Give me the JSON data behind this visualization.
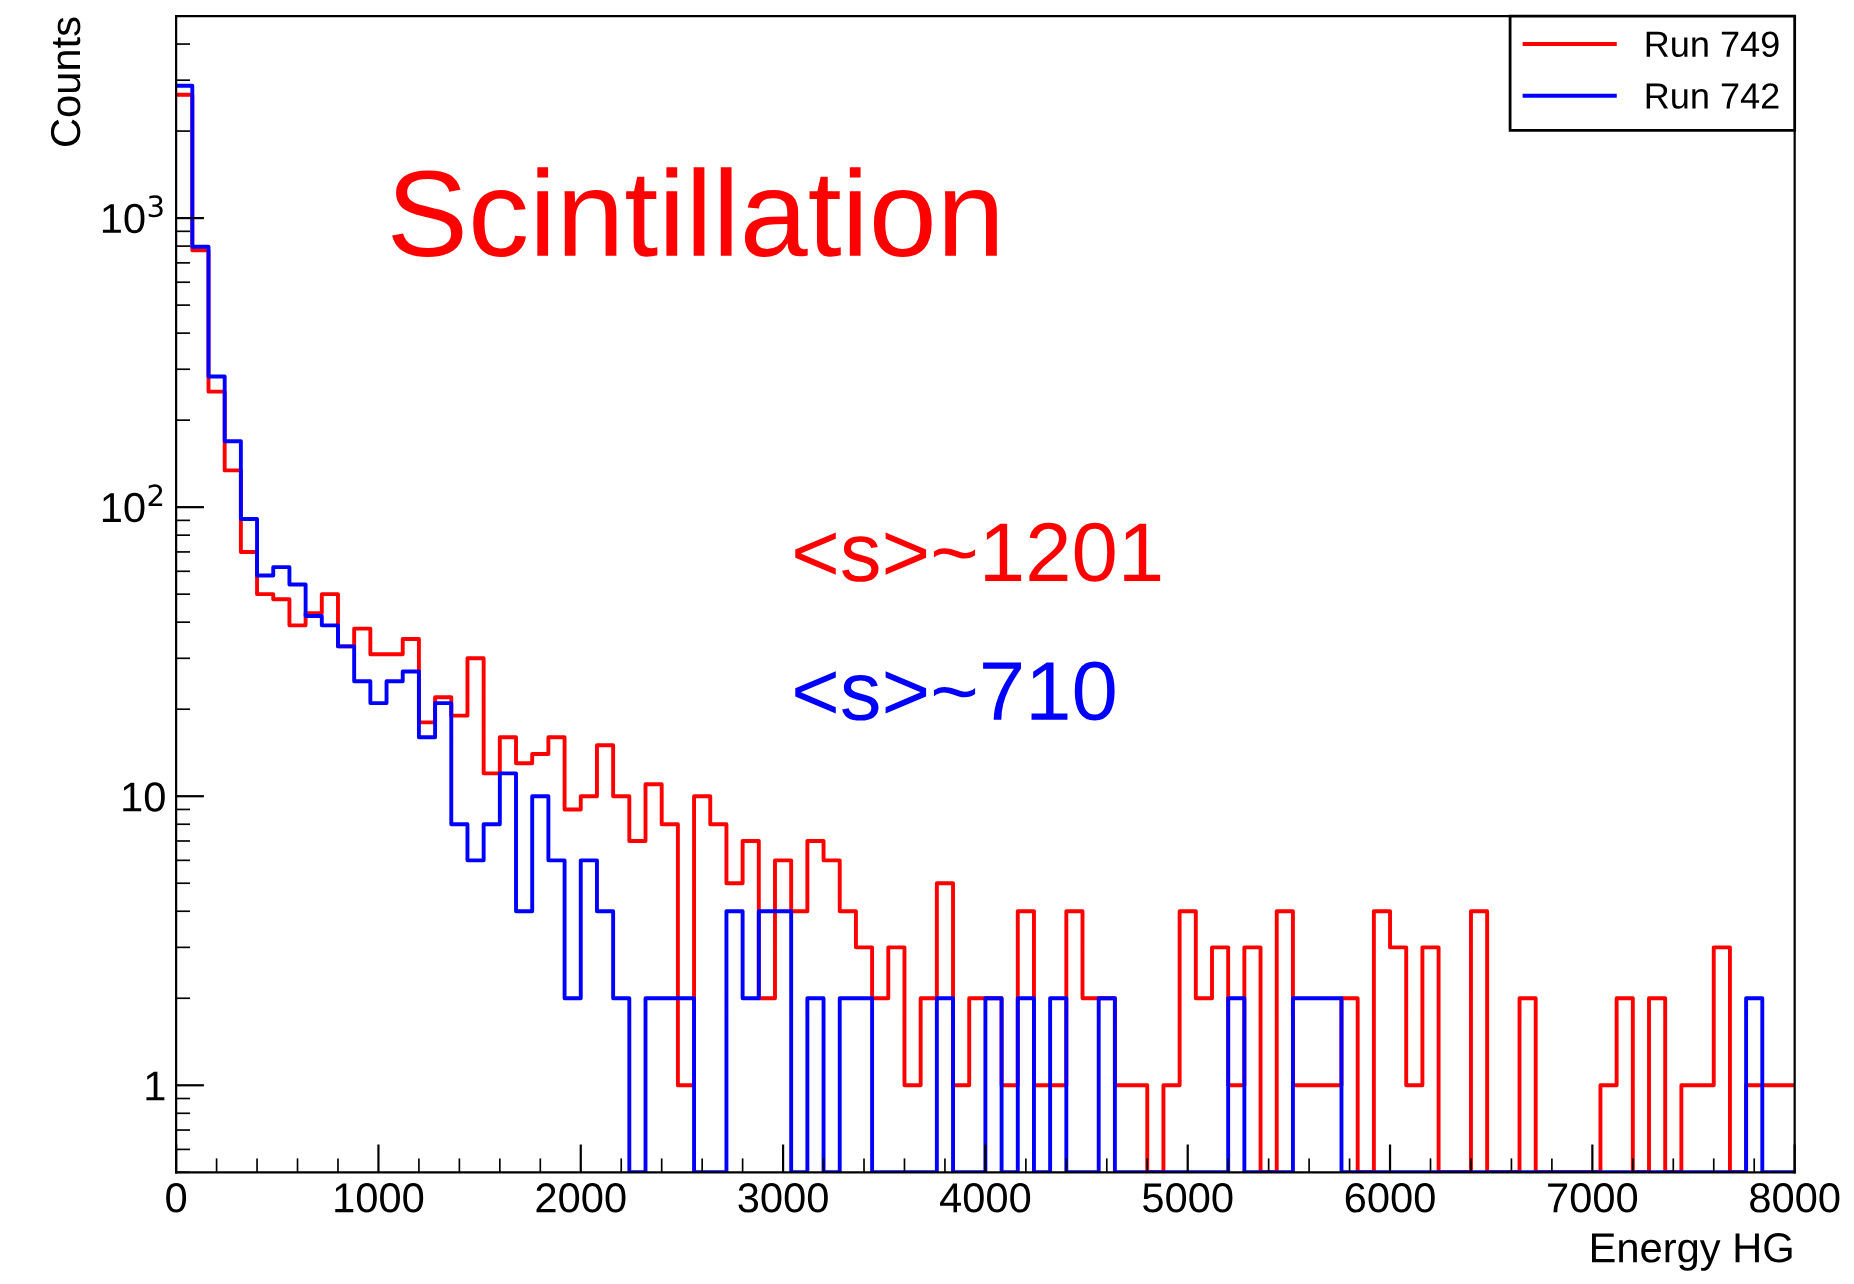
{
  "chart_data": {
    "type": "histogram",
    "xlabel": "Energy HG",
    "ylabel": "Counts",
    "bins": [
      0,
      80,
      160,
      240,
      320,
      400,
      480,
      560,
      640,
      720,
      800,
      880,
      960,
      1040,
      1120,
      1200,
      1280,
      1360,
      1440,
      1520,
      1600,
      1680,
      1760,
      1840,
      1920,
      2000,
      2080,
      2160,
      2240,
      2320,
      2400,
      2480,
      2560,
      2640,
      2720,
      2800,
      2880,
      2960,
      3040,
      3120,
      3200,
      3280,
      3360,
      3440,
      3520,
      3600,
      3680,
      3760,
      3840,
      3920,
      4000,
      4080,
      4160,
      4240,
      4320,
      4400,
      4480,
      4560,
      4640,
      4720,
      4800,
      4880,
      4960,
      5040,
      5120,
      5200,
      5280,
      5360,
      5440,
      5520,
      5600,
      5680,
      5760,
      5840,
      5920,
      6000,
      6080,
      6160,
      6240,
      6320,
      6400,
      6480,
      6560,
      6640,
      6720,
      6800,
      6880,
      6960,
      7040,
      7120,
      7200,
      7280,
      7360,
      7440,
      7520,
      7600,
      7680,
      7760,
      7840,
      7920,
      8000
    ],
    "series": [
      {
        "name": "Run 749",
        "color": "#ff0000",
        "values": [
          2670,
          774,
          251,
          134,
          70,
          50,
          48,
          39,
          43,
          50,
          33,
          38,
          31,
          31,
          35,
          18,
          22,
          19,
          30,
          12,
          16,
          13,
          14,
          16,
          9,
          10,
          15,
          10,
          7,
          11,
          8,
          1,
          10,
          8,
          5,
          7,
          2,
          6,
          4,
          7,
          6,
          4,
          3,
          2,
          3,
          1,
          2,
          5,
          1,
          2,
          2,
          1,
          4,
          1,
          1,
          4,
          2,
          2,
          1,
          1,
          null,
          1,
          4,
          2,
          3,
          1,
          3,
          null,
          4,
          1,
          1,
          1,
          2,
          null,
          4,
          3,
          1,
          3,
          null,
          null,
          4,
          null,
          null,
          2,
          null,
          null,
          null,
          null,
          1,
          2,
          null,
          2,
          null,
          1,
          1,
          3,
          null,
          1,
          1,
          1
        ]
      },
      {
        "name": "Run 742",
        "color": "#0000ff",
        "values": [
          2870,
          796,
          283,
          169,
          91,
          58,
          62,
          54,
          42,
          39,
          33,
          25,
          21,
          25,
          27,
          16,
          21,
          8,
          6,
          8,
          12,
          4,
          10,
          6,
          2,
          6,
          4,
          2,
          null,
          2,
          2,
          2,
          null,
          null,
          4,
          2,
          4,
          4,
          null,
          2,
          null,
          2,
          2,
          null,
          null,
          null,
          null,
          2,
          null,
          null,
          2,
          null,
          2,
          null,
          2,
          null,
          null,
          2,
          null,
          null,
          null,
          null,
          null,
          null,
          null,
          2,
          null,
          null,
          null,
          2,
          2,
          2,
          null,
          null,
          null,
          null,
          null,
          null,
          null,
          null,
          null,
          null,
          null,
          null,
          null,
          null,
          null,
          null,
          null,
          null,
          null,
          null,
          null,
          null,
          null,
          null,
          null,
          2,
          null,
          null
        ]
      }
    ],
    "annotations": [
      "Scintillation",
      "<s>~1201",
      "<s>~710"
    ],
    "log": "y",
    "xlim": [
      0,
      8000
    ],
    "xticks": [
      0,
      1000,
      2000,
      3000,
      4000,
      5000,
      6000,
      7000,
      8000
    ],
    "ylim": [
      0.5,
      5000
    ],
    "yticks": [
      1,
      10,
      {
        "value": 100,
        "label": "10$^{2}$"
      },
      {
        "value": 1000,
        "label": "10$^{3}$"
      }
    ],
    "legend": "top right",
    "grid": false
  }
}
